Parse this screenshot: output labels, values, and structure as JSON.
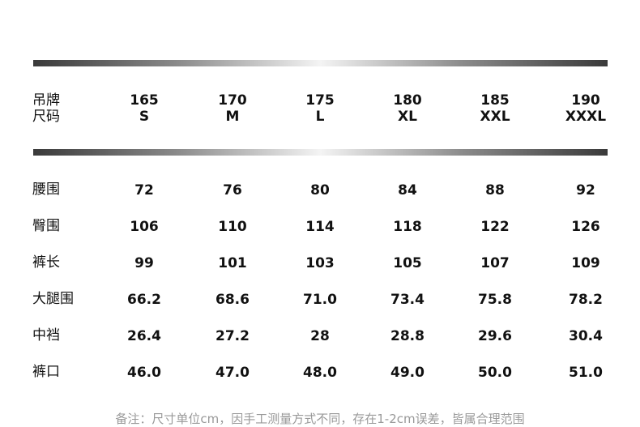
{
  "table": {
    "header": {
      "label": [
        "吊牌",
        "尺码"
      ],
      "columns": [
        {
          "height": "165",
          "size": "S"
        },
        {
          "height": "170",
          "size": "M"
        },
        {
          "height": "175",
          "size": "L"
        },
        {
          "height": "180",
          "size": "XL"
        },
        {
          "height": "185",
          "size": "XXL"
        },
        {
          "height": "190",
          "size": "XXXL"
        }
      ]
    },
    "rows": [
      {
        "label": "腰围",
        "values": [
          "72",
          "76",
          "80",
          "84",
          "88",
          "92"
        ]
      },
      {
        "label": "臀围",
        "values": [
          "106",
          "110",
          "114",
          "118",
          "122",
          "126"
        ]
      },
      {
        "label": "裤长",
        "values": [
          "99",
          "101",
          "103",
          "105",
          "107",
          "109"
        ]
      },
      {
        "label": "大腿围",
        "values": [
          "66.2",
          "68.6",
          "71.0",
          "73.4",
          "75.8",
          "78.2"
        ]
      },
      {
        "label": "中裆",
        "values": [
          "26.4",
          "27.2",
          "28",
          "28.8",
          "29.6",
          "30.4"
        ]
      },
      {
        "label": "裤口",
        "values": [
          "46.0",
          "47.0",
          "48.0",
          "49.0",
          "50.0",
          "51.0"
        ]
      }
    ]
  },
  "footer": {
    "note": "备注：尺寸单位cm，因手工测量方式不同，存在1-2cm误差，皆属合理范围"
  }
}
